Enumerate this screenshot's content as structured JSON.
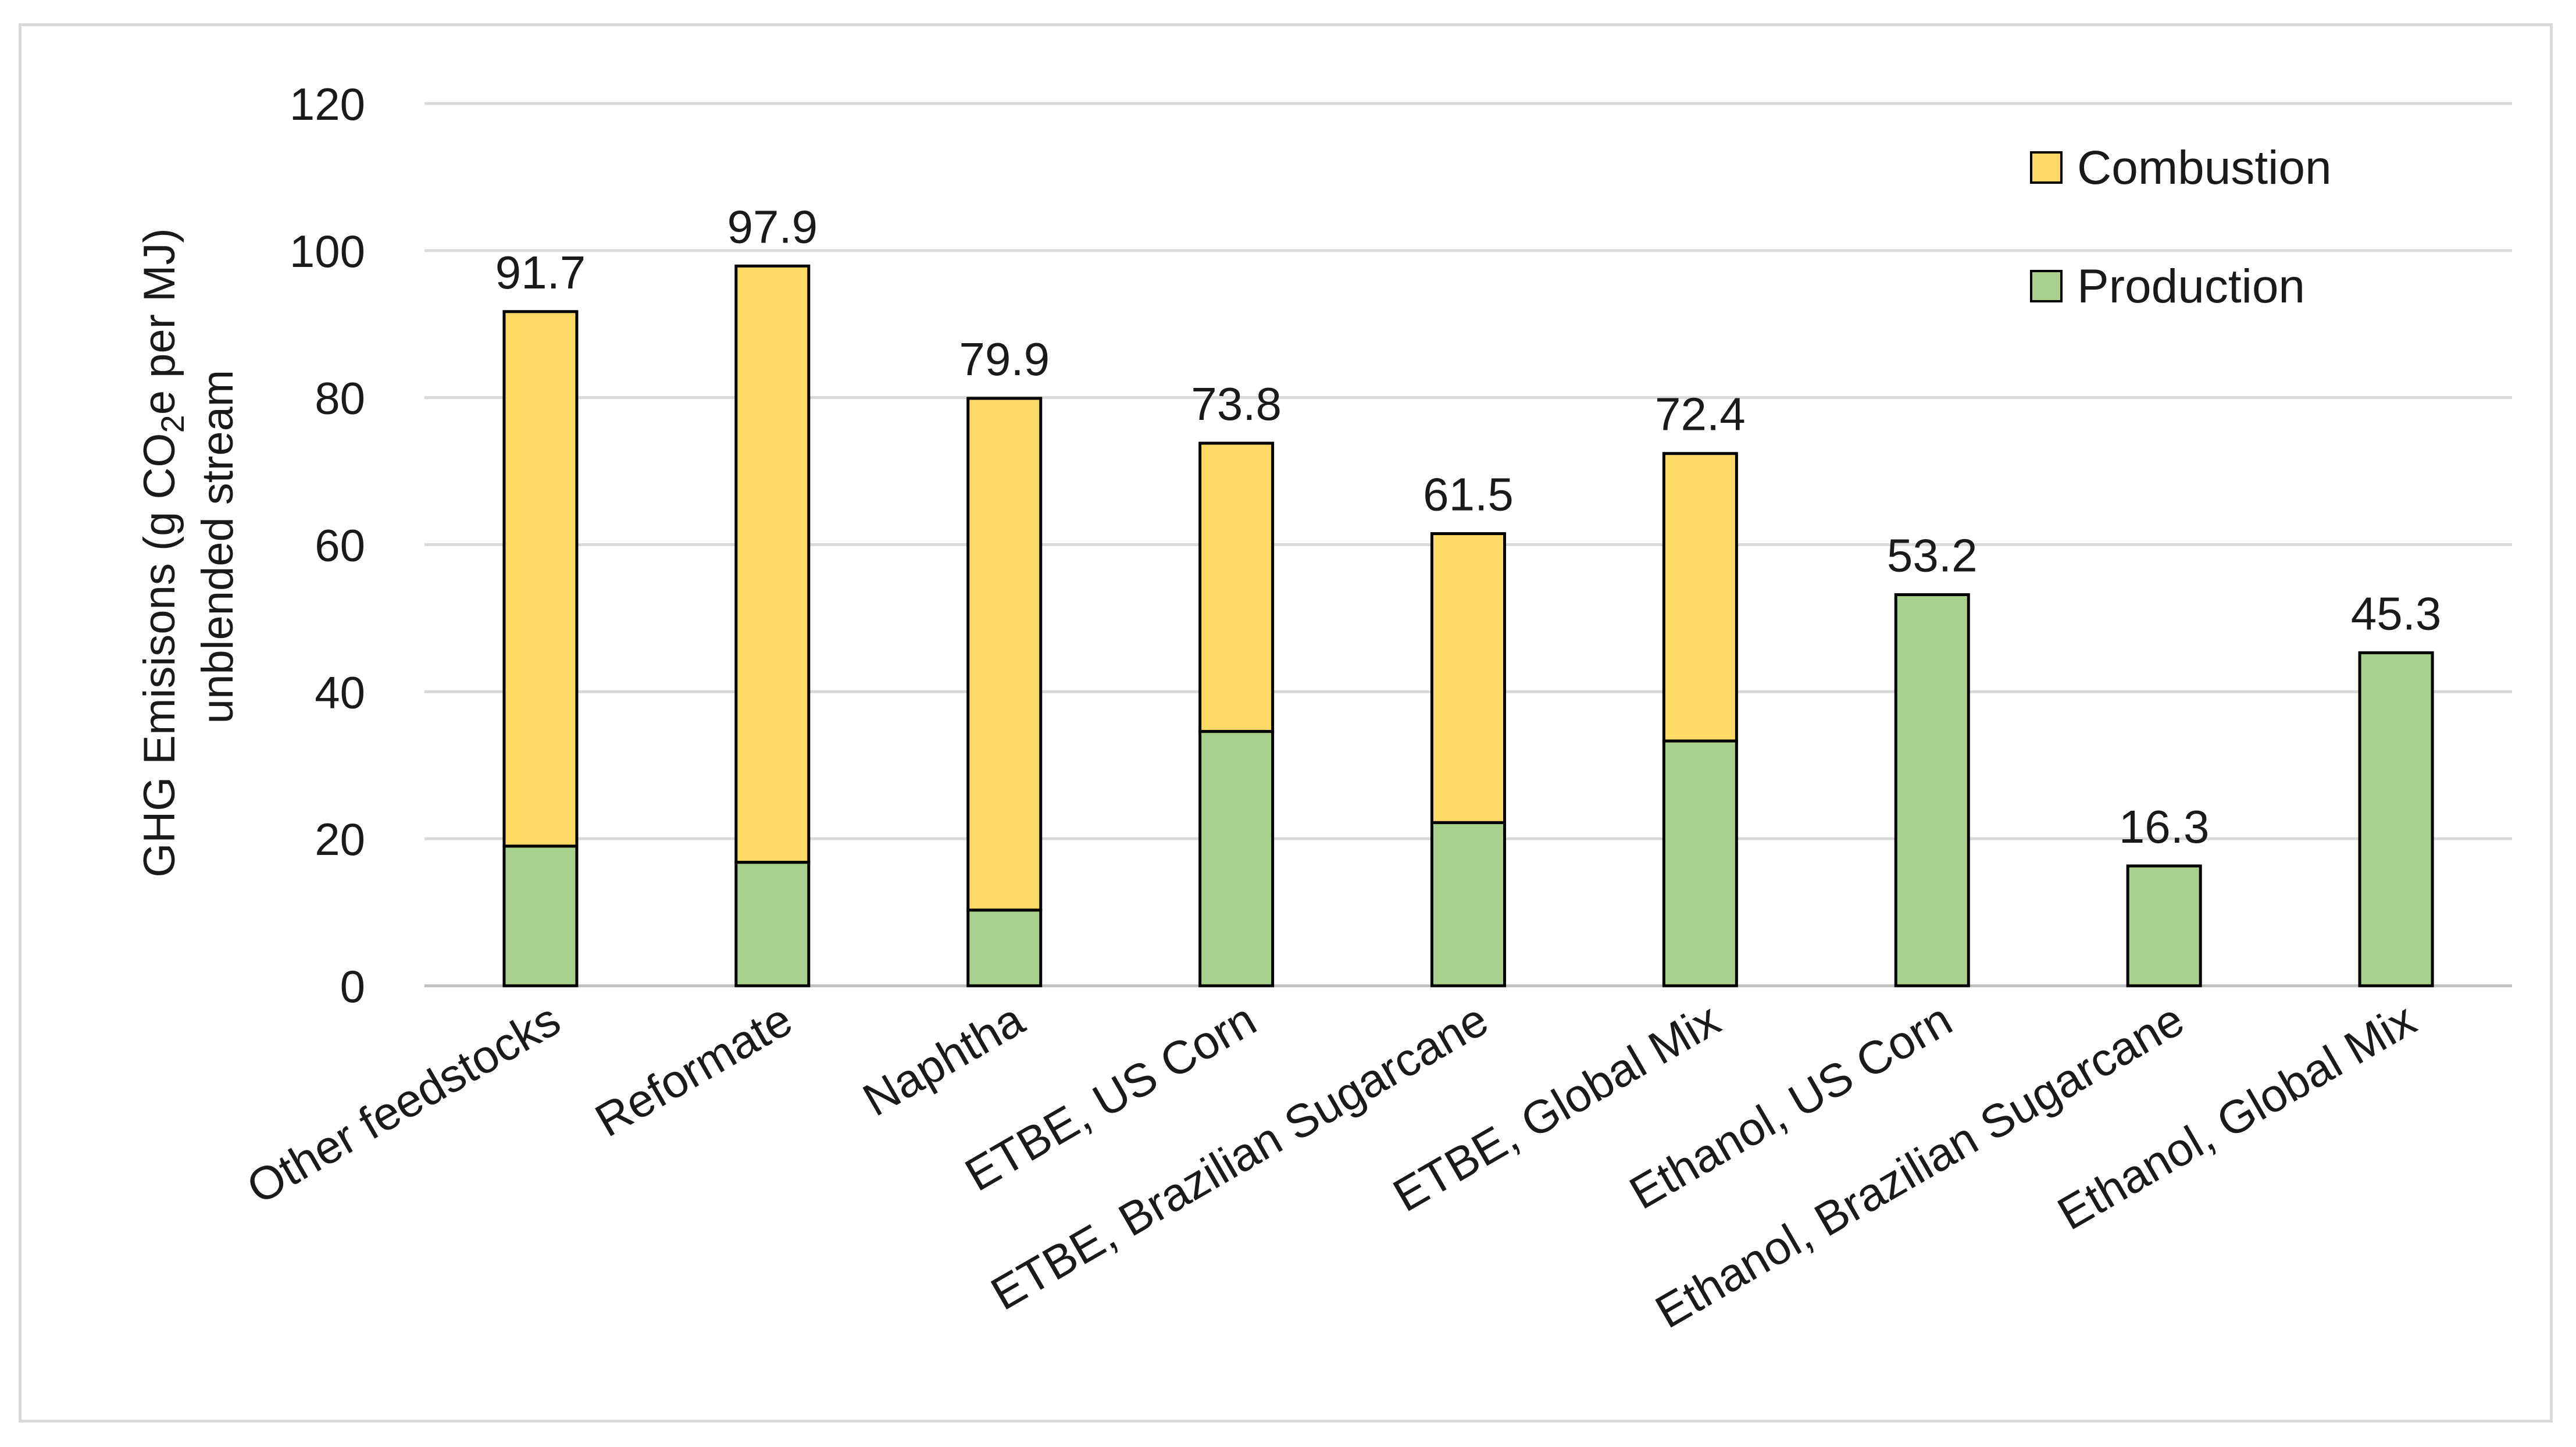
{
  "chart_data": {
    "type": "bar",
    "stacked": true,
    "title": "",
    "xlabel": "",
    "ylabel_line1_prefix": "GHG Emisisons (g CO",
    "ylabel_line1_sub": "2",
    "ylabel_line1_suffix": "e per MJ)",
    "ylabel_line2": "unblended  stream",
    "ylim": [
      0,
      120
    ],
    "yticks": [
      "0",
      "20",
      "40",
      "60",
      "80",
      "100",
      "120"
    ],
    "grid": true,
    "legend_position": "top-right",
    "categories": [
      "Other feedstocks",
      "Reformate",
      "Naphtha",
      "ETBE, US Corn",
      "ETBE, Brazilian Sugarcane",
      "ETBE, Global Mix",
      "Ethanol, US Corn",
      "Ethanol, Brazilian Sugarcane",
      "Ethanol, Global Mix"
    ],
    "series": [
      {
        "name": "Production",
        "color": "#a9d18e",
        "values": [
          19.0,
          16.8,
          10.3,
          34.6,
          22.2,
          33.3,
          53.2,
          16.3,
          45.3
        ]
      },
      {
        "name": "Combustion",
        "color": "#ffd966",
        "values": [
          72.7,
          81.1,
          69.6,
          39.2,
          39.3,
          39.1,
          0,
          0,
          0
        ]
      }
    ],
    "totals": [
      "91.7",
      "97.9",
      "79.9",
      "73.8",
      "61.5",
      "72.4",
      "53.2",
      "16.3",
      "45.3"
    ],
    "legend": [
      "Combustion",
      "Production"
    ]
  }
}
